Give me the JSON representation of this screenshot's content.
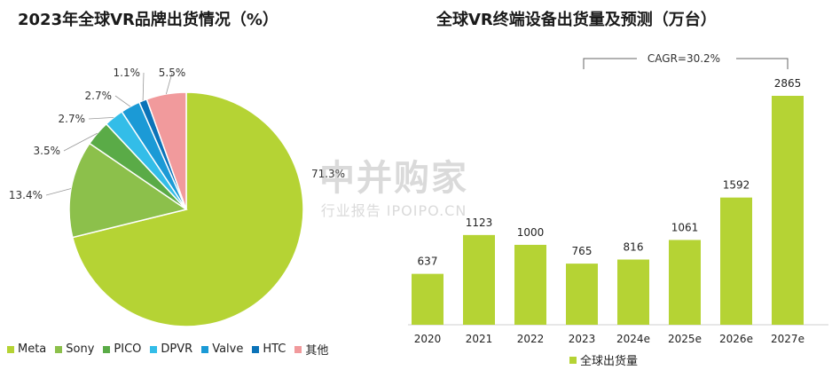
{
  "charts_meta": {
    "pie_title": "2023年全球VR品牌出货情况（%）",
    "bar_title": "全球VR终端设备出货量及预测（万台）",
    "cagr_label": "CAGR=30.2%",
    "watermark_main": "中并购家",
    "watermark_sub": "行业报告 IPOIPO.CN"
  },
  "chart_data": [
    {
      "type": "pie",
      "title": "2023年全球VR品牌出货情况（%）",
      "categories": [
        "Meta",
        "Sony",
        "PICO",
        "DPVR",
        "Valve",
        "HTC",
        "其他"
      ],
      "values": [
        71.3,
        13.4,
        3.5,
        2.7,
        2.7,
        1.1,
        5.5
      ],
      "labels": [
        "71.3%",
        "13.4%",
        "3.5%",
        "2.7%",
        "2.7%",
        "1.1%",
        "5.5%"
      ],
      "colors": [
        "#b5d334",
        "#8cc04b",
        "#5aab47",
        "#33bde8",
        "#1b9ad6",
        "#0b73b8",
        "#f19a9c"
      ],
      "legend_position": "bottom"
    },
    {
      "type": "bar",
      "title": "全球VR终端设备出货量及预测（万台）",
      "categories": [
        "2020",
        "2021",
        "2022",
        "2023",
        "2024e",
        "2025e",
        "2026e",
        "2027e"
      ],
      "series": [
        {
          "name": "全球出货量",
          "values": [
            637,
            1123,
            1000,
            765,
            816,
            1061,
            1592,
            2865
          ]
        }
      ],
      "color": "#b5d334",
      "annotation": "CAGR=30.2%",
      "legend_position": "bottom"
    }
  ]
}
